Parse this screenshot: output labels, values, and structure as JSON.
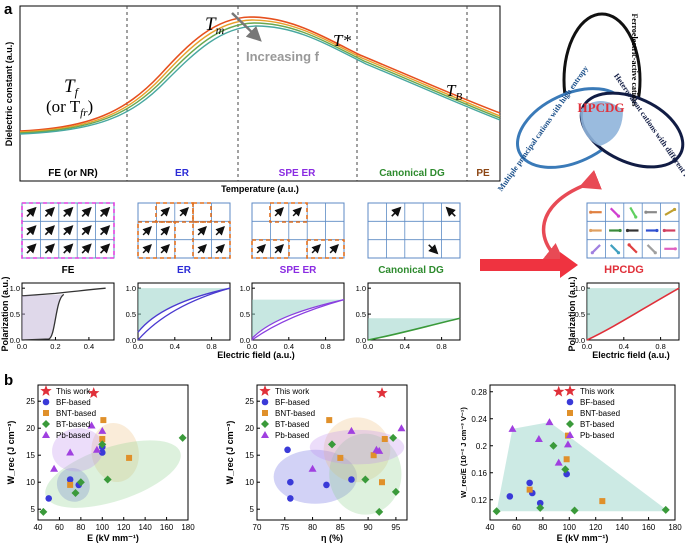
{
  "panel_a": {
    "label": "a",
    "dielectric": {
      "ylabel": "Dielectric constant (a.u.)",
      "xlabel": "Temperature (a.u.)",
      "tm_label": "T",
      "tm_sub": "m",
      "tstar_label": "T*",
      "tb_label": "T",
      "tb_sub": "B",
      "tf_label": "T",
      "tf_sub": "f",
      "tfr_prefix": "(or T",
      "tfr_sub": "fr",
      "tfr_suffix": ")",
      "increasing_label": "Increasing f",
      "regions": [
        {
          "name": "FE (or NR)",
          "color": "#000000"
        },
        {
          "name": "ER",
          "color": "#2b2bd6"
        },
        {
          "name": "SPE ER",
          "color": "#8a2be2"
        },
        {
          "name": "Canonical DG",
          "color": "#2e8b2e"
        },
        {
          "name": "PE",
          "color": "#8b4513"
        }
      ]
    },
    "venn": {
      "circles": [
        "Ferroelectric-active cations",
        "Multiple principal cations with high entropy",
        "Heterovalent cations with different radii"
      ],
      "center": "HPCDG"
    },
    "domain_labels": [
      {
        "name": "FE",
        "color": "#000000"
      },
      {
        "name": "ER",
        "color": "#2b2bd6"
      },
      {
        "name": "SPE ER",
        "color": "#8a2be2"
      },
      {
        "name": "Canonical DG",
        "color": "#2e8b2e"
      },
      {
        "name": "HPCDG",
        "color": "#e0303a"
      }
    ],
    "loops": {
      "ylabel": "Polarization (a.u.)",
      "xlabel": "Electric field (a.u.)",
      "yticks": [
        "0.0",
        "0.5",
        "1.0"
      ],
      "xticks_a": [
        "0.0",
        "0.2",
        "0.4"
      ],
      "xticks_b": [
        "0.0",
        "0.4",
        "0.8"
      ]
    }
  },
  "panel_b": {
    "label": "b",
    "legend": [
      "This work",
      "BF-based",
      "BNT-based",
      "BT-based",
      "Pb-based"
    ],
    "colors": {
      "This work": "#e0303a",
      "BF-based": "#3a3ad8",
      "BNT-based": "#e0902a",
      "BT-based": "#3a9a3a",
      "Pb-based": "#a040e0"
    }
  },
  "chart_data": [
    {
      "type": "scatter",
      "title": "",
      "xlabel": "E (kV mm⁻¹)",
      "ylabel": "W_rec (J cm⁻³)",
      "xlim": [
        40,
        180
      ],
      "ylim": [
        3,
        28
      ],
      "xticks": [
        40,
        60,
        80,
        100,
        120,
        140,
        160,
        180
      ],
      "yticks": [
        5,
        10,
        15,
        20,
        25
      ],
      "series": [
        {
          "name": "This work",
          "points": [
            [
              92,
              26.5
            ]
          ]
        },
        {
          "name": "BF-based",
          "points": [
            [
              50,
              7
            ],
            [
              70,
              10.5
            ],
            [
              78,
              9.5
            ],
            [
              100,
              15.5
            ],
            [
              100,
              16.5
            ]
          ]
        },
        {
          "name": "BNT-based",
          "points": [
            [
              70,
              9.5
            ],
            [
              100,
              18
            ],
            [
              101,
              21.5
            ],
            [
              125,
              14.5
            ]
          ]
        },
        {
          "name": "BT-based",
          "points": [
            [
              45,
              4.5
            ],
            [
              75,
              8
            ],
            [
              80,
              10
            ],
            [
              100,
              17
            ],
            [
              105,
              10.5
            ],
            [
              175,
              18.2
            ]
          ]
        },
        {
          "name": "Pb-based",
          "points": [
            [
              55,
              12.5
            ],
            [
              70,
              15.5
            ],
            [
              95,
              16
            ],
            [
              100,
              19.5
            ],
            [
              90,
              20.5
            ]
          ]
        }
      ]
    },
    {
      "type": "scatter",
      "title": "",
      "xlabel": "η (%)",
      "ylabel": "W_rec (J cm⁻³)",
      "xlim": [
        70,
        97
      ],
      "ylim": [
        3,
        28
      ],
      "xticks": [
        70,
        75,
        80,
        85,
        90,
        95
      ],
      "yticks": [
        5,
        10,
        15,
        20,
        25
      ],
      "series": [
        {
          "name": "This work",
          "points": [
            [
              92.5,
              26.5
            ]
          ]
        },
        {
          "name": "BF-based",
          "points": [
            [
              75.5,
              16
            ],
            [
              76,
              10
            ],
            [
              76,
              7
            ],
            [
              82.5,
              9.5
            ],
            [
              87,
              10.5
            ]
          ]
        },
        {
          "name": "BNT-based",
          "points": [
            [
              83,
              21.5
            ],
            [
              85,
              14.5
            ],
            [
              91,
              15
            ],
            [
              92.5,
              10
            ],
            [
              93,
              18
            ]
          ]
        },
        {
          "name": "BT-based",
          "points": [
            [
              83.5,
              17
            ],
            [
              89.5,
              10.5
            ],
            [
              92,
              4.5
            ],
            [
              94.5,
              18.2
            ],
            [
              95,
              8.2
            ]
          ]
        },
        {
          "name": "Pb-based",
          "points": [
            [
              80,
              12.5
            ],
            [
              87,
              19.5
            ],
            [
              91.5,
              16
            ],
            [
              92,
              15.8
            ],
            [
              96,
              20
            ]
          ]
        }
      ]
    },
    {
      "type": "scatter",
      "title": "",
      "xlabel": "E (kV mm⁻¹)",
      "ylabel": "W_rec/E (10⁻² J cm⁻³ V⁻¹)",
      "xlim": [
        40,
        180
      ],
      "ylim": [
        0.09,
        0.29
      ],
      "xticks": [
        40,
        60,
        80,
        100,
        120,
        140,
        160,
        180
      ],
      "yticks": [
        0.12,
        0.16,
        0.2,
        0.24,
        0.28
      ],
      "series": [
        {
          "name": "This work",
          "points": [
            [
              92,
              0.28
            ]
          ]
        },
        {
          "name": "BF-based",
          "points": [
            [
              55,
              0.125
            ],
            [
              70,
              0.145
            ],
            [
              72,
              0.13
            ],
            [
              78,
              0.115
            ],
            [
              98,
              0.158
            ]
          ]
        },
        {
          "name": "BNT-based",
          "points": [
            [
              70,
              0.135
            ],
            [
              98,
              0.18
            ],
            [
              99,
              0.215
            ],
            [
              125,
              0.118
            ]
          ]
        },
        {
          "name": "BT-based",
          "points": [
            [
              45,
              0.103
            ],
            [
              78,
              0.108
            ],
            [
              88,
              0.2
            ],
            [
              97,
              0.165
            ],
            [
              104,
              0.104
            ],
            [
              173,
              0.105
            ]
          ]
        },
        {
          "name": "Pb-based",
          "points": [
            [
              57,
              0.225
            ],
            [
              77,
              0.21
            ],
            [
              85,
              0.235
            ],
            [
              92,
              0.175
            ],
            [
              99,
              0.202
            ]
          ]
        }
      ]
    }
  ]
}
